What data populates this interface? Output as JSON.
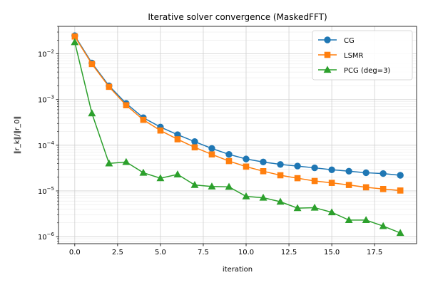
{
  "chart_data": {
    "type": "line",
    "title": "Iterative solver convergence (MaskedFFT)",
    "xlabel": "iteration",
    "ylabel": "‖r_k‖/‖r_0‖",
    "yscale": "log",
    "grid": true,
    "legend_position": "top-right",
    "xlim": [
      -0.95,
      19.95
    ],
    "ylim": [
      7e-07,
      0.04
    ],
    "x_ticks": [
      0,
      2.5,
      5,
      7.5,
      10,
      12.5,
      15,
      17.5
    ],
    "x_tick_labels": [
      "0.0",
      "2.5",
      "5.0",
      "7.5",
      "10.0",
      "12.5",
      "15.0",
      "17.5"
    ],
    "y_ticks": [
      1e-06,
      1e-05,
      0.0001,
      0.001,
      0.01
    ],
    "y_tick_labels": [
      {
        "base": "10",
        "exp": "−6"
      },
      {
        "base": "10",
        "exp": "−5"
      },
      {
        "base": "10",
        "exp": "−4"
      },
      {
        "base": "10",
        "exp": "−3"
      },
      {
        "base": "10",
        "exp": "−2"
      }
    ],
    "x": [
      0,
      1,
      2,
      3,
      4,
      5,
      6,
      7,
      8,
      9,
      10,
      11,
      12,
      13,
      14,
      15,
      16,
      17,
      18,
      19
    ],
    "series": [
      {
        "name": "CG",
        "color": "#1f77b4",
        "marker": "circle",
        "values": [
          0.025,
          0.0063,
          0.002,
          0.00082,
          0.0004,
          0.00025,
          0.00017,
          0.00012,
          8.5e-05,
          6.3e-05,
          5e-05,
          4.3e-05,
          3.8e-05,
          3.5e-05,
          3.2e-05,
          2.9e-05,
          2.7e-05,
          2.5e-05,
          2.4e-05,
          2.2e-05
        ]
      },
      {
        "name": "LSMR",
        "color": "#ff7f0e",
        "marker": "square",
        "values": [
          0.024,
          0.006,
          0.0019,
          0.00075,
          0.00036,
          0.00021,
          0.000135,
          9e-05,
          6.3e-05,
          4.5e-05,
          3.4e-05,
          2.7e-05,
          2.2e-05,
          1.9e-05,
          1.65e-05,
          1.5e-05,
          1.35e-05,
          1.2e-05,
          1.1e-05,
          1.02e-05
        ]
      },
      {
        "name": "PCG (deg=3)",
        "color": "#2ca02c",
        "marker": "triangle",
        "values": [
          0.018,
          0.0005,
          4e-05,
          4.3e-05,
          2.5e-05,
          1.9e-05,
          2.3e-05,
          1.35e-05,
          1.25e-05,
          1.23e-05,
          7.6e-06,
          7.1e-06,
          5.8e-06,
          4.2e-06,
          4.3e-06,
          3.4e-06,
          2.3e-06,
          2.3e-06,
          1.7e-06,
          1.2e-06
        ]
      }
    ]
  }
}
